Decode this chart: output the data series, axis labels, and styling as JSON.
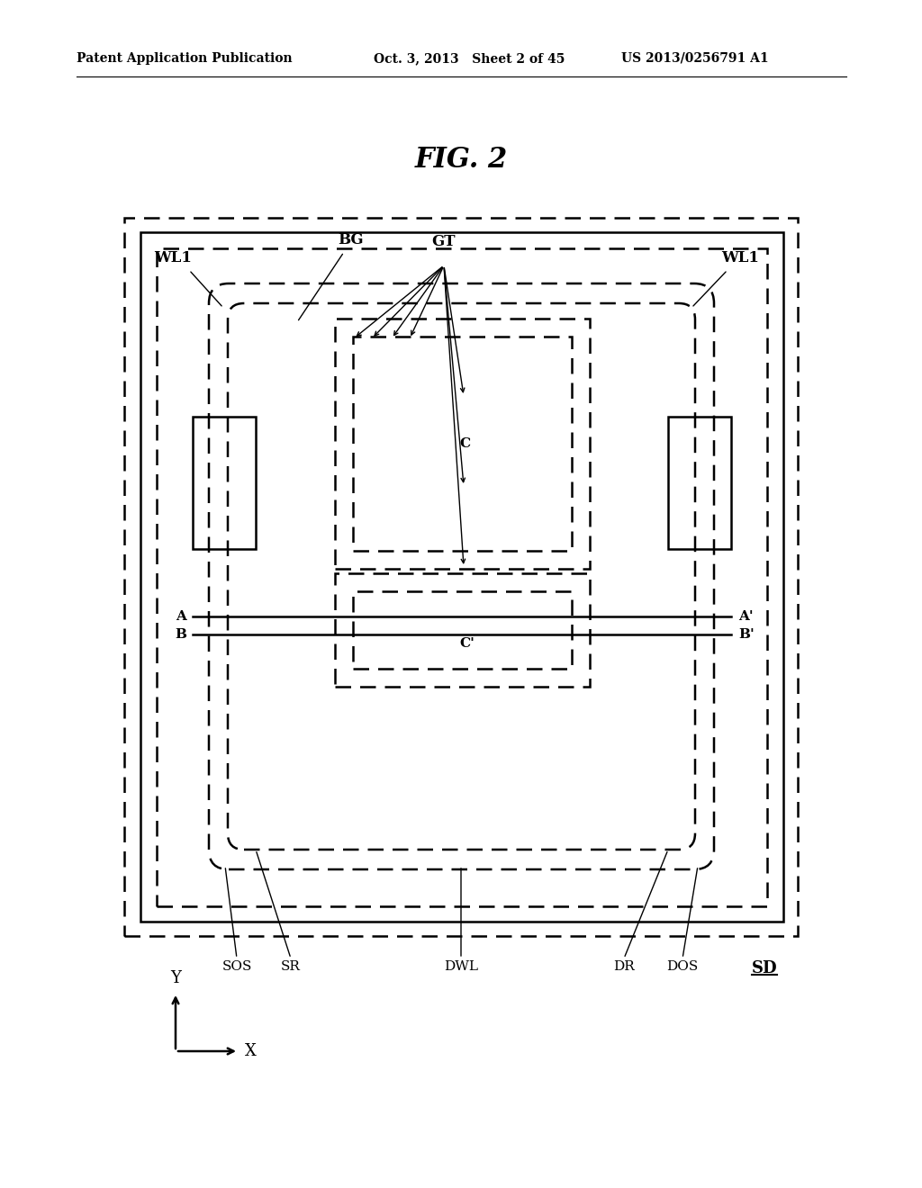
{
  "header_left": "Patent Application Publication",
  "header_center": "Oct. 3, 2013   Sheet 2 of 45",
  "header_right": "US 2013/0256791 A1",
  "fig_title": "FIG. 2",
  "bg_color": "#ffffff",
  "lw_main": 1.8,
  "lw_thin": 1.2
}
